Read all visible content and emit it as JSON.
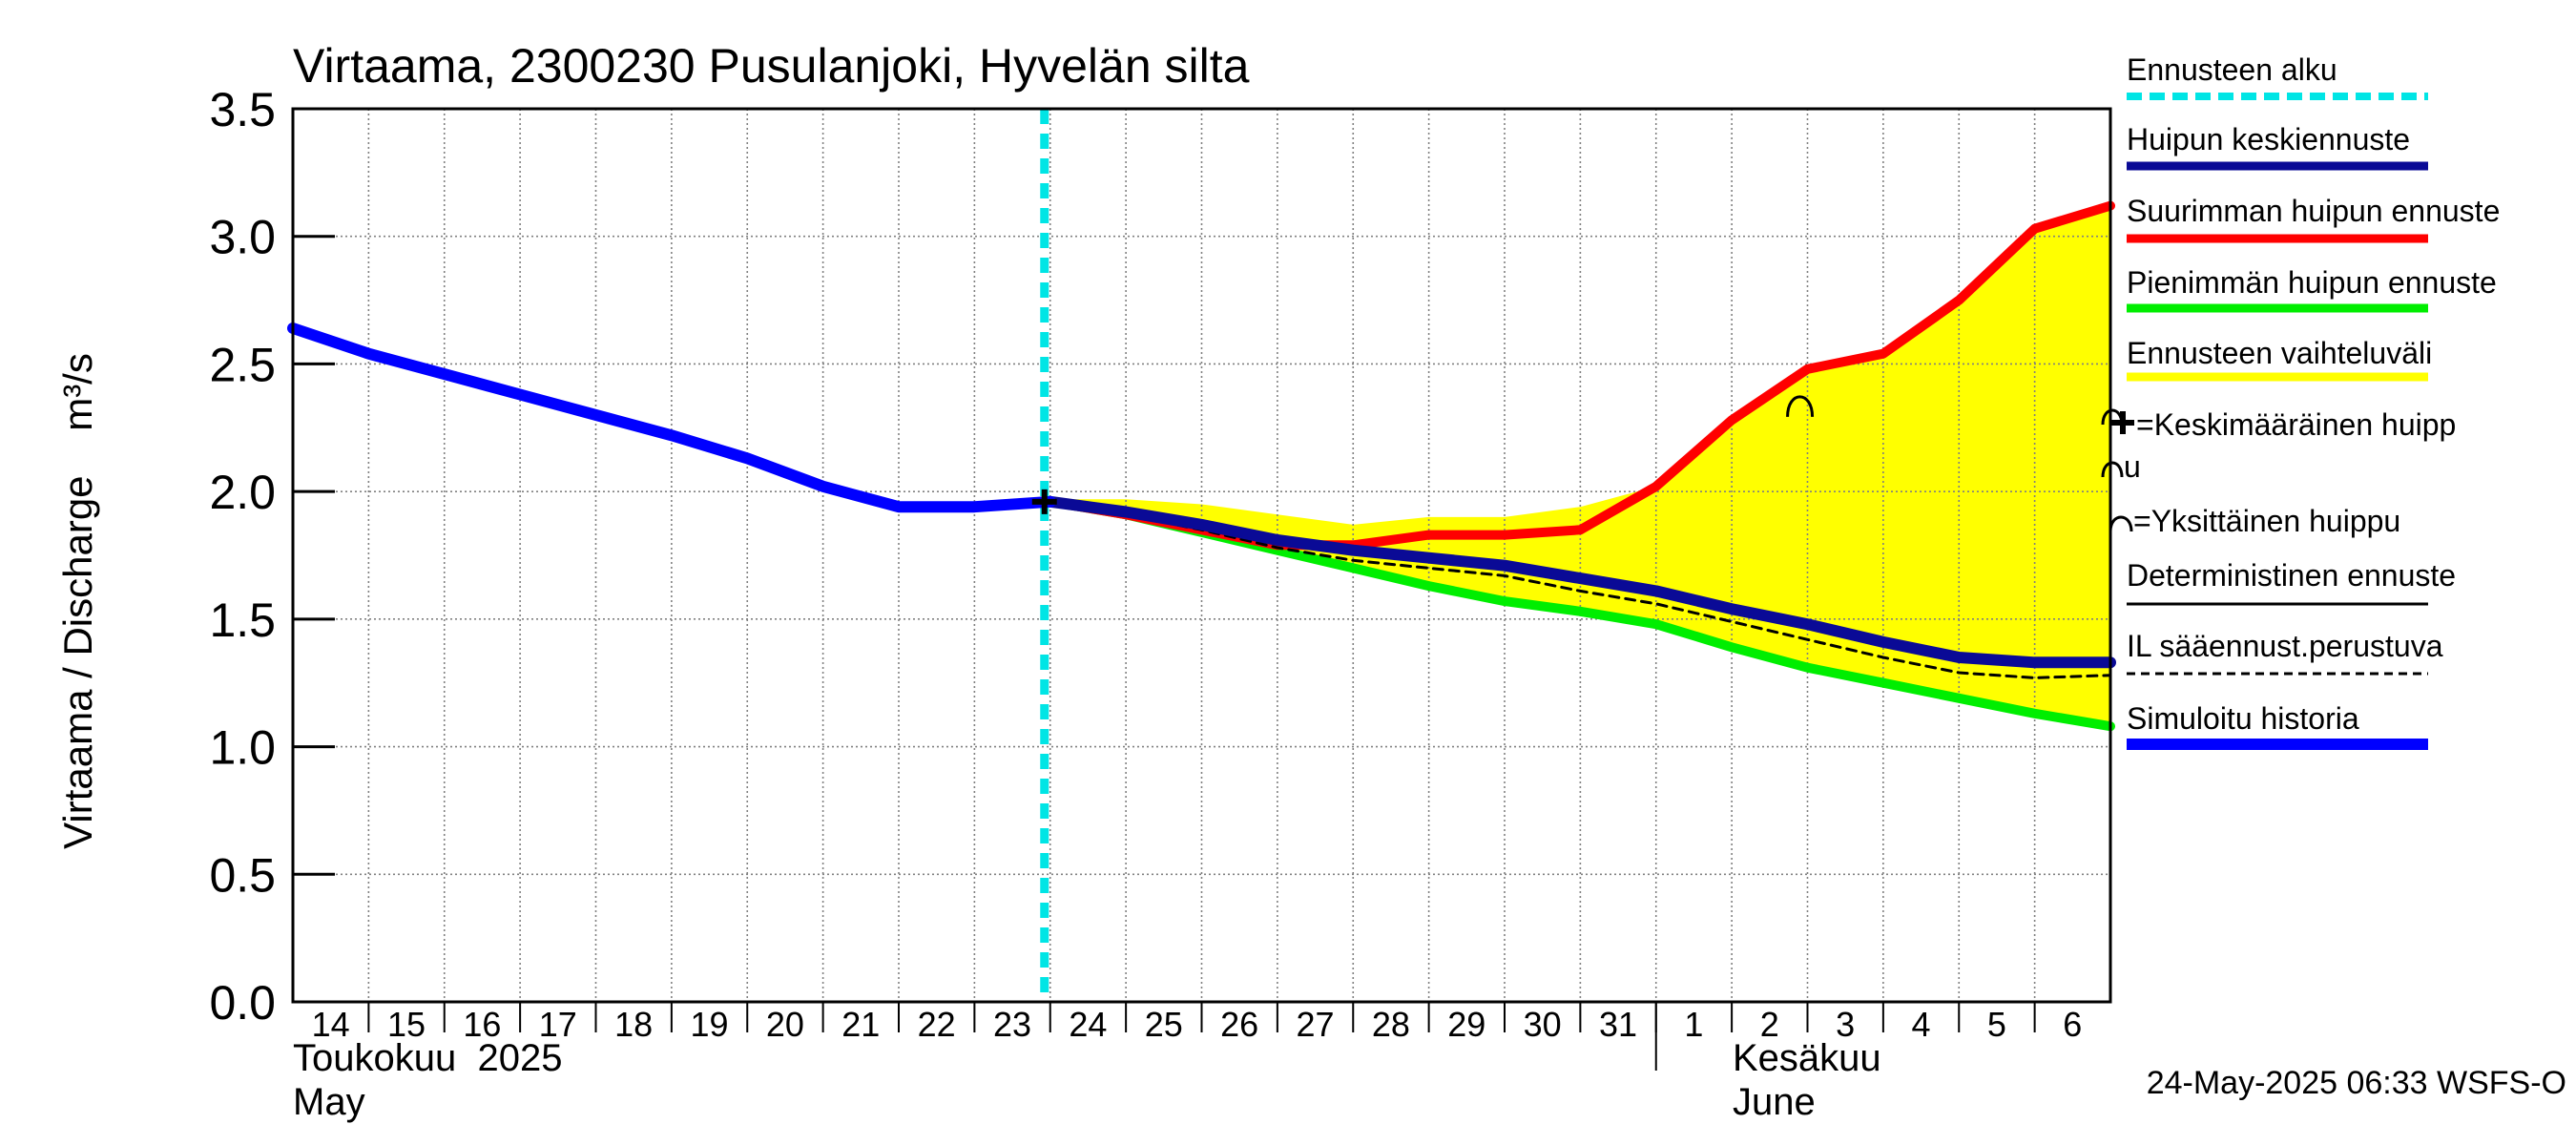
{
  "chart_data": {
    "type": "line",
    "title": "Virtaama, 2300230 Pusulanjoki, Hyvelän silta",
    "ylabel": "Virtaama / Discharge    m³/s",
    "ylim": [
      0,
      3.5
    ],
    "yticks": [
      "0.0",
      "0.5",
      "1.0",
      "1.5",
      "2.0",
      "2.5",
      "3.0",
      "3.5"
    ],
    "x_start_day": 14,
    "x_days": 24,
    "x_tick_labels": [
      "14",
      "15",
      "16",
      "17",
      "18",
      "19",
      "20",
      "21",
      "22",
      "23",
      "24",
      "25",
      "26",
      "27",
      "28",
      "29",
      "30",
      "31",
      "1",
      "2",
      "3",
      "4",
      "5",
      "6"
    ],
    "month_labels": {
      "may_fi": "Toukokuu  2025",
      "may_en": "May",
      "june_fi": "Kesäkuu",
      "june_en": "June"
    },
    "june_start_day": 32,
    "forecast_start_day": 24.0,
    "timestamp": "24-May-2025 06:33 WSFS-O",
    "series": [
      {
        "name": "Simuloitu historia",
        "color": "#0000ff",
        "x": [
          14,
          15,
          16,
          17,
          18,
          19,
          20,
          21,
          22,
          23,
          24
        ],
        "values": [
          2.64,
          2.54,
          2.46,
          2.38,
          2.3,
          2.22,
          2.13,
          2.02,
          1.94,
          1.94,
          1.96
        ]
      },
      {
        "name": "Huipun keskiennuste",
        "color": "#0a0a96",
        "x": [
          24,
          25,
          26,
          27,
          28,
          29,
          30,
          31,
          32,
          33,
          34,
          35,
          36,
          37,
          38
        ],
        "values": [
          1.96,
          1.92,
          1.87,
          1.81,
          1.77,
          1.74,
          1.71,
          1.66,
          1.61,
          1.54,
          1.48,
          1.41,
          1.35,
          1.33,
          1.33
        ]
      },
      {
        "name": "Suurimman huipun ennuste",
        "color": "#ff0000",
        "x": [
          24,
          25,
          26,
          27,
          28,
          29,
          30,
          31,
          32,
          33,
          34,
          35,
          36,
          37,
          38
        ],
        "values": [
          1.96,
          1.91,
          1.85,
          1.79,
          1.79,
          1.83,
          1.83,
          1.85,
          2.02,
          2.28,
          2.48,
          2.54,
          2.75,
          3.03,
          3.12
        ]
      },
      {
        "name": "Pienimmän huipun ennuste",
        "color": "#00ee00",
        "x": [
          24,
          25,
          26,
          27,
          28,
          29,
          30,
          31,
          32,
          33,
          34,
          35,
          36,
          37,
          38
        ],
        "values": [
          1.96,
          1.91,
          1.84,
          1.77,
          1.7,
          1.63,
          1.57,
          1.53,
          1.48,
          1.39,
          1.31,
          1.25,
          1.19,
          1.13,
          1.08
        ]
      },
      {
        "name": "IL sääennust.perustuva",
        "color": "#000000",
        "dashed": true,
        "x": [
          24,
          25,
          26,
          27,
          28,
          29,
          30,
          31,
          32,
          33,
          34,
          35,
          36,
          37,
          38
        ],
        "values": [
          1.96,
          1.91,
          1.85,
          1.78,
          1.73,
          1.7,
          1.67,
          1.61,
          1.56,
          1.49,
          1.42,
          1.35,
          1.29,
          1.27,
          1.28
        ]
      }
    ],
    "range_band": {
      "name": "Ennusteen vaihteluväli",
      "color": "#ffff00",
      "x": [
        24,
        25,
        26,
        27,
        28,
        29,
        30,
        31,
        32,
        33,
        34,
        35,
        36,
        37,
        38
      ],
      "upper": [
        1.97,
        1.97,
        1.95,
        1.91,
        1.87,
        1.9,
        1.9,
        1.94,
        2.02,
        2.28,
        2.48,
        2.54,
        2.75,
        3.03,
        3.12
      ],
      "lower": [
        1.96,
        1.91,
        1.84,
        1.77,
        1.7,
        1.63,
        1.57,
        1.53,
        1.48,
        1.39,
        1.31,
        1.25,
        1.19,
        1.13,
        1.08
      ]
    },
    "mean_peak": {
      "x": 24.0,
      "y": 1.96
    },
    "single_peaks": [
      {
        "x": 33.9,
        "y": 2.33
      }
    ],
    "legend": [
      {
        "label": "Ennusteen alku",
        "style": "dotted",
        "color": "#00e5e5"
      },
      {
        "label": "Huipun keskiennuste",
        "style": "solid",
        "color": "#0a0a96"
      },
      {
        "label": "Suurimman huipun ennuste",
        "style": "solid",
        "color": "#ff0000"
      },
      {
        "label": "Pienimmän huipun ennuste",
        "style": "solid",
        "color": "#00ee00"
      },
      {
        "label": "Ennusteen vaihteluväli",
        "style": "solid",
        "color": "#ffff00"
      },
      {
        "label": "=Keskimääräinen huipp",
        "label2": "u",
        "style": "mean-peak-symbol",
        "color": "#000000"
      },
      {
        "label": "=Yksittäinen huippu",
        "style": "single-peak-symbol",
        "color": "#000000"
      },
      {
        "label": "Deterministinen ennuste",
        "style": "thin",
        "color": "#000000"
      },
      {
        "label": "IL sääennust.perustuva",
        "style": "dashed",
        "color": "#000000"
      },
      {
        "label": "Simuloitu historia",
        "style": "thick",
        "color": "#0000ff"
      }
    ]
  }
}
